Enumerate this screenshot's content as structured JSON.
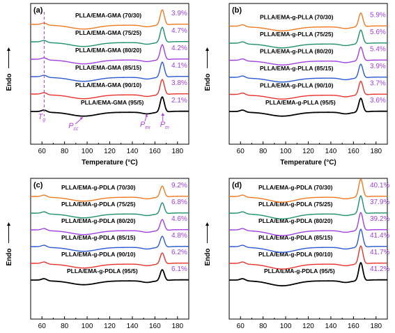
{
  "figure": {
    "colors": {
      "curves": [
        "#000000",
        "#e8322d",
        "#2d5ad2",
        "#a040e0",
        "#1e8f6e",
        "#f07a20"
      ],
      "percent_text": "#a040e0",
      "annotation": "#b040e0"
    }
  },
  "chart_data": [
    {
      "type": "line",
      "panel": "(a)",
      "xlabel": "Temperature (°C)",
      "ylabel": "Endo",
      "xlim": [
        50,
        190
      ],
      "xticks": [
        "60",
        "80",
        "100",
        "120",
        "140",
        "160",
        "180"
      ],
      "series": [
        {
          "name": "PLLA/EMA-GMA (95/5)",
          "crystallinity": "2.1%"
        },
        {
          "name": "PLLA/EMA-GMA (90/10)",
          "crystallinity": "3.8%"
        },
        {
          "name": "PLLA/EMA-GMA (85/15)",
          "crystallinity": "4.1%"
        },
        {
          "name": "PLLA/EMA-GMA (80/20)",
          "crystallinity": "4.2%"
        },
        {
          "name": "PLLA/EMA-GMA (75/25)",
          "crystallinity": "4.7%"
        },
        {
          "name": "PLLA/EMA-GMA (70/30)",
          "crystallinity": "3.9%"
        }
      ],
      "annotations": {
        "tg": {
          "main": "T",
          "sub": "g",
          "x": 62
        },
        "pcc": {
          "main": "P",
          "sub": "cc",
          "x": 97
        },
        "pex": {
          "main": "P",
          "sub": "ex",
          "x": 153
        },
        "pm": {
          "main": "P",
          "sub": "m",
          "x": 167
        }
      }
    },
    {
      "type": "line",
      "panel": "(b)",
      "xlabel": "Temperature (°C)",
      "ylabel": "Endo",
      "xlim": [
        50,
        190
      ],
      "xticks": [
        "60",
        "80",
        "100",
        "120",
        "140",
        "160",
        "180"
      ],
      "series": [
        {
          "name": "PLLA/EMA-g-PLLA (95/5)",
          "crystallinity": "3.6%"
        },
        {
          "name": "PLLA/EMA-g-PLLA (90/10)",
          "crystallinity": "3.7%"
        },
        {
          "name": "PLLA/EMA-g-PLLA (85/15)",
          "crystallinity": "3.9%"
        },
        {
          "name": "PLLA/EMA-g-PLLA (80/20)",
          "crystallinity": "5.4%"
        },
        {
          "name": "PLLA/EMA-g-PLLA (75/25)",
          "crystallinity": "5.6%"
        },
        {
          "name": "PLLA/EMA-g-PLLA (70/30)",
          "crystallinity": "5.9%"
        }
      ]
    },
    {
      "type": "line",
      "panel": "(c)",
      "xlabel": "Temperature (°C)",
      "ylabel": "Endo",
      "xlim": [
        50,
        190
      ],
      "xticks": [
        "60",
        "80",
        "100",
        "120",
        "140",
        "160",
        "180"
      ],
      "series": [
        {
          "name": "PLLA/EMA-g-PDLA (95/5)",
          "crystallinity": "6.1%"
        },
        {
          "name": "PLLA/EMA-g-PDLA (90/10)",
          "crystallinity": "6.2%"
        },
        {
          "name": "PLLA/EMA-g-PDLA (85/15)",
          "crystallinity": "4.8%"
        },
        {
          "name": "PLLA/EMA-g-PDLA (80/20)",
          "crystallinity": "4.6%"
        },
        {
          "name": "PLLA/EMA-g-PDLA (75/25)",
          "crystallinity": "6.8%"
        },
        {
          "name": "PLLA/EMA-g-PDLA (70/30)",
          "crystallinity": "9.2%"
        }
      ]
    },
    {
      "type": "line",
      "panel": "(d)",
      "xlabel": "Temperature (°C)",
      "ylabel": "Endo",
      "xlim": [
        50,
        190
      ],
      "xticks": [
        "60",
        "80",
        "100",
        "120",
        "140",
        "160",
        "180"
      ],
      "series": [
        {
          "name": "PLLA/EMA-g-PDLA (95/5)",
          "crystallinity": "41.2%"
        },
        {
          "name": "PLLA/EMA-g-PDLA (90/10)",
          "crystallinity": "41.7%"
        },
        {
          "name": "PLLA/EMA-g-PDLA (85/15)",
          "crystallinity": "41.4%"
        },
        {
          "name": "PLLA/EMA-g-PDLA (80/20)",
          "crystallinity": "39.2%"
        },
        {
          "name": "PLLA/EMA-g-PDLA (75/25)",
          "crystallinity": "37.9%"
        },
        {
          "name": "PLLA/EMA-g-PDLA (70/30)",
          "crystallinity": "40.1%"
        }
      ]
    }
  ]
}
